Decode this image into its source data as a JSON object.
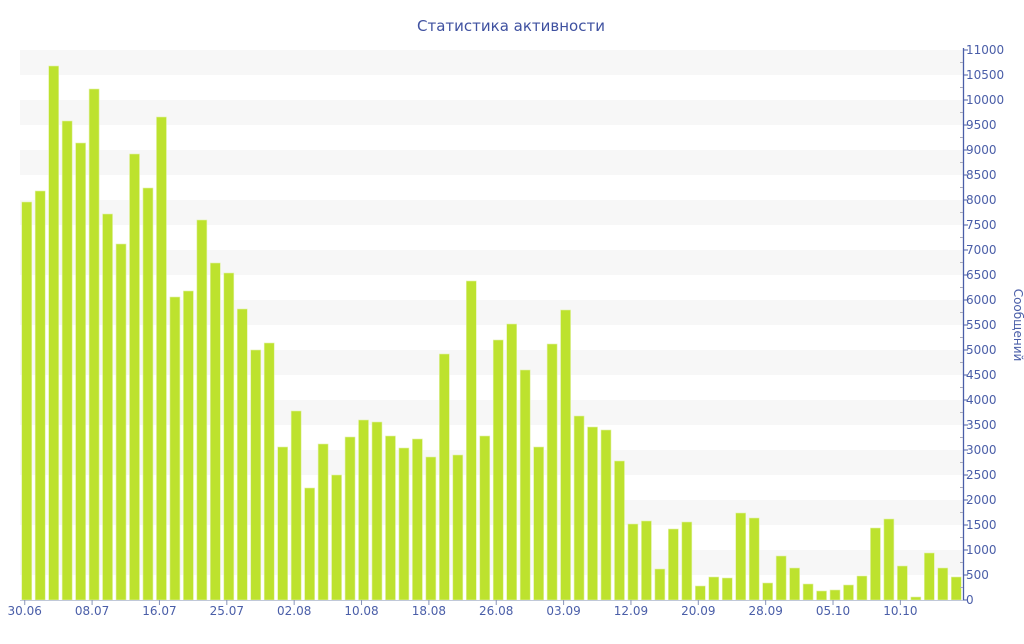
{
  "chart_data": {
    "type": "bar",
    "title": "Статистика активности",
    "xlabel": "",
    "ylabel": "Сообщений",
    "ylim": [
      0,
      11000
    ],
    "ytick_step": 500,
    "y_axis_side": "right",
    "grid": "alternating horizontal bands",
    "legend": "none",
    "colors": {
      "bar": "#bde22e",
      "axis": "#4a5ea8",
      "title": "#3f51a0",
      "band": "#f7f7f7"
    },
    "tick_labels": [
      "30.06",
      "08.07",
      "16.07",
      "25.07",
      "02.08",
      "10.08",
      "18.08",
      "26.08",
      "03.09",
      "12.09",
      "20.09",
      "28.09",
      "05.10",
      "10.10"
    ],
    "tick_every": 5,
    "values": [
      7960,
      8180,
      10680,
      9580,
      9140,
      10220,
      7720,
      7120,
      8920,
      8240,
      9660,
      6060,
      6180,
      7600,
      6740,
      6540,
      5820,
      5000,
      5140,
      3060,
      3780,
      2240,
      3120,
      2500,
      3260,
      3600,
      3560,
      3280,
      3040,
      3220,
      2860,
      4920,
      2900,
      6380,
      3280,
      5200,
      5520,
      4600,
      3060,
      5120,
      5800,
      3680,
      3460,
      3400,
      2780,
      1520,
      1580,
      620,
      1420,
      1560,
      280,
      460,
      440,
      1740,
      1640,
      340,
      880,
      640,
      320,
      180,
      200,
      300,
      480,
      1440,
      1620,
      680,
      60,
      940,
      640,
      460
    ]
  }
}
